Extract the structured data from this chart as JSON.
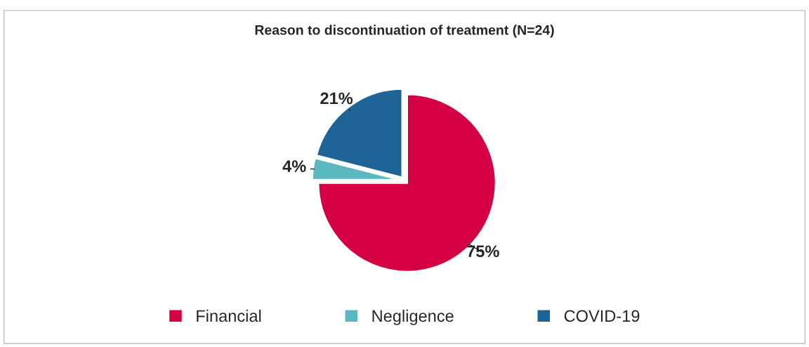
{
  "chart_data": {
    "type": "pie",
    "title": "Reason to discontinuation of treatment (N=24)",
    "categories": [
      "Financial",
      "Negligence",
      "COVID-19"
    ],
    "values": [
      75,
      4,
      21
    ],
    "colors": [
      "#d50043",
      "#5bb8c1",
      "#1f6496"
    ],
    "value_labels": [
      "75%",
      "4%",
      "21%"
    ],
    "legend": "bottom"
  }
}
